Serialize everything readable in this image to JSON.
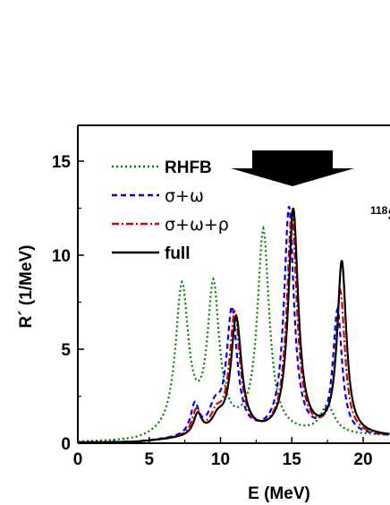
{
  "chart_data": {
    "type": "line",
    "xlabel": "E (MeV)",
    "ylabel": "R´ (1/MeV)",
    "xlim": [
      0,
      22
    ],
    "ylim": [
      0,
      17
    ],
    "xticks": [
      "0",
      "5",
      "10",
      "15",
      "20"
    ],
    "yticks": [
      "0",
      "5",
      "10",
      "15"
    ],
    "legend_position": "top-left",
    "annotation": {
      "superscript": "118",
      "text": "S"
    },
    "arrow": {
      "at_x": 15,
      "direction": "down"
    },
    "series": [
      {
        "name": "RHFB",
        "color": "#008000",
        "style": "dotted",
        "peaks": [
          [
            7.3,
            7.9,
            0.55
          ],
          [
            9.5,
            7.7,
            0.5
          ],
          [
            13.0,
            10.8,
            0.5
          ],
          [
            17.5,
            1.5,
            0.6
          ]
        ],
        "background": 0.35
      },
      {
        "name": "σ+ω",
        "color": "#0000ee",
        "style": "dashed",
        "peaks": [
          [
            8.2,
            1.6,
            0.35
          ],
          [
            9.6,
            1.2,
            0.5
          ],
          [
            10.8,
            6.6,
            0.45
          ],
          [
            14.8,
            12.1,
            0.42
          ],
          [
            18.2,
            6.6,
            0.38
          ]
        ],
        "background": 0.3
      },
      {
        "name": "σ+ω+ρ",
        "color": "#dd0000",
        "style": "dashdot",
        "peaks": [
          [
            8.3,
            1.3,
            0.35
          ],
          [
            9.7,
            0.9,
            0.5
          ],
          [
            11.0,
            6.4,
            0.45
          ],
          [
            15.0,
            11.8,
            0.42
          ],
          [
            18.4,
            7.6,
            0.38
          ]
        ],
        "background": 0.3
      },
      {
        "name": "full",
        "color": "#000000",
        "style": "solid",
        "peaks": [
          [
            8.4,
            1.1,
            0.35
          ],
          [
            9.8,
            0.7,
            0.5
          ],
          [
            11.1,
            6.2,
            0.45
          ],
          [
            15.1,
            12.0,
            0.42
          ],
          [
            18.5,
            9.2,
            0.38
          ]
        ],
        "background": 0.3
      }
    ]
  }
}
